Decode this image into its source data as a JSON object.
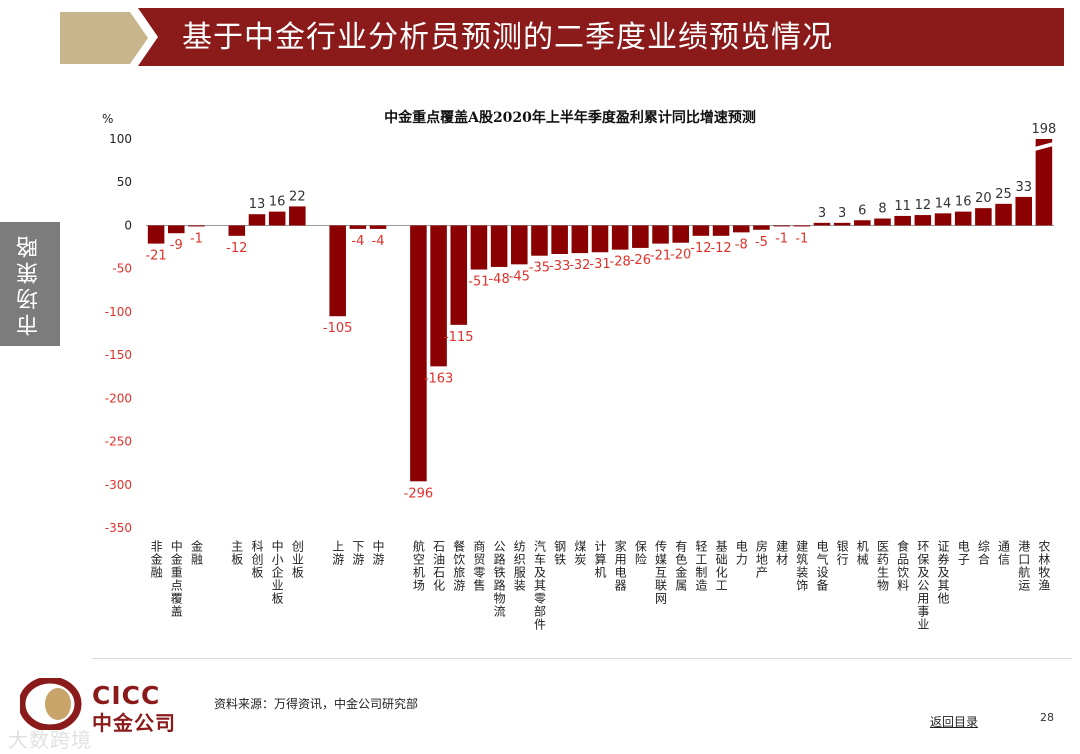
{
  "header": {
    "title": "基于中金行业分析员预测的二季度业绩预览情况"
  },
  "sidebar": {
    "label": "市场策略"
  },
  "chart_data": {
    "type": "bar",
    "title": "中金重点覆盖A股2020年上半年季度盈利累计同比增速预测",
    "ylabel": "%",
    "ylim": [
      -350,
      100
    ],
    "yticks": [
      100,
      50,
      0,
      -50,
      -100,
      -150,
      -200,
      -250,
      -300,
      -350
    ],
    "bar_color": "#8b0000",
    "positive_label_color": "#333333",
    "negative_label_color": "#e0322b",
    "series": [
      {
        "values": [
          -21,
          -9,
          -1,
          null,
          -12,
          13,
          16,
          22,
          null,
          -105,
          -4,
          -4,
          null,
          -296,
          -163,
          -115,
          -51,
          -48,
          -45,
          -35,
          -33,
          -32,
          -31,
          -28,
          -26,
          -21,
          -20,
          -12,
          -12,
          -8,
          -5,
          -1,
          -1,
          3,
          3,
          6,
          8,
          11,
          12,
          14,
          16,
          20,
          25,
          33,
          198
        ]
      }
    ],
    "categories": [
      "非金融",
      "中金重点覆盖",
      "金融",
      "",
      "主板",
      "科创板",
      "中小企业板",
      "创业板",
      "",
      "上游",
      "下游",
      "中游",
      "",
      "航空机场",
      "石油石化",
      "餐饮旅游",
      "商贸零售",
      "公路铁路物流",
      "纺织服装",
      "汽车及其零部件",
      "钢铁",
      "煤炭",
      "计算机",
      "家用电器",
      "保险",
      "传媒互联网",
      "有色金属",
      "轻工制造",
      "基础化工",
      "电力",
      "房地产",
      "建材",
      "建筑装饰",
      "电气设备",
      "银行",
      "机械",
      "医药生物",
      "食品饮料",
      "环保及公用事业",
      "证券及其他",
      "电子",
      "综合",
      "通信",
      "港口航运",
      "农林牧渔"
    ],
    "data_labels": [
      "-21",
      "-9",
      "-1",
      "",
      "-12",
      "13",
      "16",
      "22",
      "",
      "-105",
      "-4",
      "-4",
      "",
      "-296",
      "-163",
      "-115",
      "-51",
      "-48",
      "-45",
      "-35",
      "-33",
      "-32",
      "-31",
      "-28",
      "-26",
      "-21",
      "-20",
      "-12",
      "-12",
      "-8",
      "-5",
      "-1",
      "-1",
      "3",
      "3",
      "6",
      "8",
      "11",
      "12",
      "14",
      "16",
      "20",
      "25",
      "33",
      "198"
    ],
    "axis_break": {
      "category": "农林牧渔",
      "value": 198,
      "shown_up_to": 100
    }
  },
  "footer": {
    "source": "资料来源：万得资讯，中金公司研究部",
    "back_link": "返回目录",
    "page_number": "28",
    "logo_en": "CICC",
    "logo_cn": "中金公司",
    "watermark": "大数跨境"
  }
}
